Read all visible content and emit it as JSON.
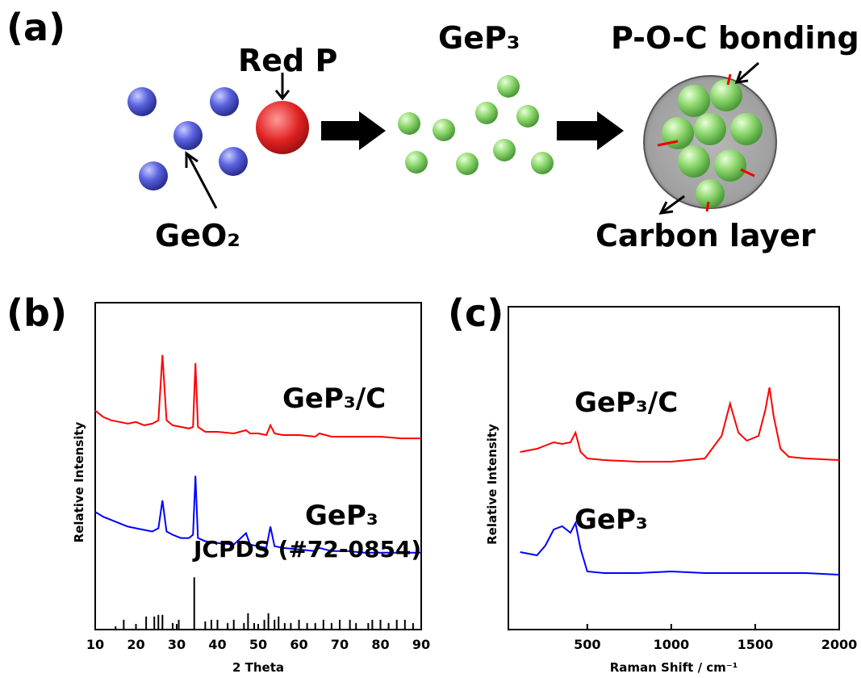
{
  "schematic": {
    "panel": "(a)",
    "red_p": "Red P",
    "gep3": "GeP₃",
    "bonding": "P-O-C bonding",
    "geo2": "GeO₂",
    "carbon": "Carbon layer"
  },
  "chart_data": [
    {
      "type": "line",
      "panel": "(b)",
      "xlabel": "2 Theta",
      "ylabel": "Relative Intensity",
      "xlim": [
        10,
        90
      ],
      "xticks": [
        10,
        20,
        30,
        40,
        50,
        60,
        70,
        80,
        90
      ],
      "ylim": [
        0,
        100
      ],
      "series": [
        {
          "name": "GeP₃/C",
          "color": "#ff0000",
          "x": [
            10,
            12,
            14,
            16,
            18,
            20,
            22,
            24,
            25.5,
            26.5,
            27.5,
            29,
            31,
            33,
            34,
            34.6,
            35.2,
            37,
            40,
            44,
            47,
            48,
            50,
            52,
            53,
            54,
            56,
            60,
            64,
            65,
            68,
            72,
            76,
            80,
            85,
            90
          ],
          "values": [
            67,
            65,
            64,
            63.5,
            63,
            63.5,
            62.5,
            63,
            64,
            84,
            64,
            62.5,
            62,
            61.5,
            62,
            81.5,
            62,
            60.5,
            60.5,
            60,
            61,
            60,
            60,
            59.5,
            62.5,
            60,
            59.5,
            59.5,
            59,
            60,
            59,
            59,
            59,
            59,
            58.5,
            58.5
          ]
        },
        {
          "name": "GeP₃",
          "color": "#0000ff",
          "x": [
            10,
            12,
            14,
            16,
            18,
            20,
            22,
            24,
            25.5,
            26.5,
            27.5,
            29,
            31,
            33,
            34,
            34.6,
            35.2,
            37,
            40,
            44,
            47,
            48,
            50,
            52,
            53,
            54,
            56,
            60,
            64,
            65,
            68,
            72,
            76,
            80,
            85,
            90
          ],
          "values": [
            36,
            34.5,
            33.5,
            32.5,
            31.5,
            31,
            30.5,
            30,
            31,
            39.5,
            30,
            29,
            28,
            28,
            29,
            47,
            28,
            27,
            26.5,
            26,
            29.5,
            26,
            25.5,
            25,
            31.5,
            25.5,
            25,
            24.5,
            24,
            25,
            24,
            24,
            23.5,
            23.5,
            23.5,
            23.5
          ]
        },
        {
          "name": "JCPDS (#72-0854)",
          "color": "#000000",
          "type": "bar",
          "x": [
            15,
            17,
            22.5,
            24.5,
            25.5,
            26.5,
            29,
            30.5,
            34.3,
            37,
            38.5,
            40,
            42.5,
            44,
            46.5,
            47.5,
            49,
            51.5,
            52.5,
            54,
            55,
            56.5,
            58,
            60,
            62,
            64,
            66,
            68,
            70,
            72.5,
            74,
            77,
            78,
            80,
            82,
            84,
            86,
            88
          ],
          "values": [
            1,
            3,
            4,
            4,
            4.5,
            4.5,
            2,
            3,
            16,
            2.5,
            3,
            3,
            2,
            3,
            2,
            5,
            2,
            3,
            5,
            3,
            4,
            2,
            2,
            3,
            2,
            2,
            3,
            2,
            3,
            3,
            2,
            2,
            3,
            3,
            2,
            3,
            3,
            2
          ]
        }
      ]
    },
    {
      "type": "line",
      "panel": "(c)",
      "xlabel": "Raman Shift / cm⁻¹",
      "ylabel": "Relative Intensity",
      "xlim": [
        30,
        2000
      ],
      "xticks": [
        500,
        1000,
        1500,
        2000
      ],
      "ylim": [
        0,
        100
      ],
      "series": [
        {
          "name": "GeP₃/C",
          "color": "#ff0000",
          "x": [
            100,
            200,
            250,
            300,
            350,
            400,
            430,
            460,
            500,
            600,
            800,
            1000,
            1200,
            1300,
            1350,
            1400,
            1450,
            1520,
            1560,
            1585,
            1610,
            1650,
            1700,
            1800,
            2000
          ],
          "values": [
            55,
            56,
            57,
            58,
            57.5,
            58,
            61,
            55,
            53,
            52.5,
            52,
            52,
            53,
            60,
            70,
            61,
            58.5,
            60,
            68,
            75,
            66,
            56,
            53.5,
            53,
            52.5
          ]
        },
        {
          "name": "GeP₃",
          "color": "#0000ff",
          "x": [
            100,
            200,
            250,
            300,
            350,
            400,
            430,
            460,
            500,
            600,
            800,
            1000,
            1200,
            1300,
            1350,
            1400,
            1450,
            1520,
            1560,
            1585,
            1610,
            1650,
            1700,
            1800,
            2000
          ],
          "values": [
            24,
            23,
            26,
            31,
            32,
            30,
            33,
            25,
            18,
            17.5,
            17.5,
            18,
            17.5,
            17.5,
            17.5,
            17.5,
            17.5,
            17.5,
            17.5,
            17.5,
            17.5,
            17.5,
            17.5,
            17.5,
            17
          ]
        }
      ]
    }
  ]
}
